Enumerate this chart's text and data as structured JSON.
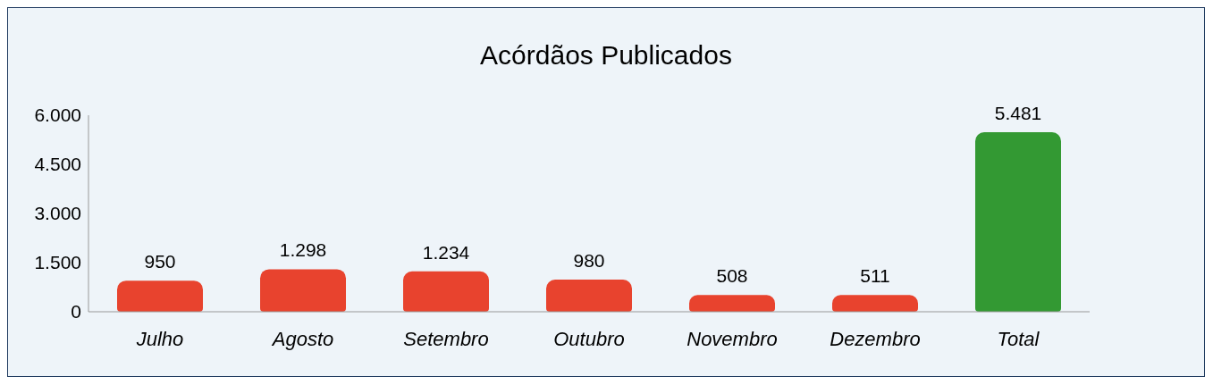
{
  "chart_data": {
    "type": "bar",
    "title": "Acórdãos Publicados",
    "categories": [
      "Julho",
      "Agosto",
      "Setembro",
      "Outubro",
      "Novembro",
      "Dezembro",
      "Total"
    ],
    "values": [
      950,
      1298,
      1234,
      980,
      508,
      511,
      5481
    ],
    "colors": [
      "#e8432e",
      "#e8432e",
      "#e8432e",
      "#e8432e",
      "#e8432e",
      "#e8432e",
      "#339933"
    ],
    "value_labels": [
      "950",
      "1.298",
      "1.234",
      "980",
      "508",
      "511",
      "5.481"
    ],
    "ylim": [
      0,
      6000
    ],
    "yticks": [
      {
        "value": 0,
        "label": "0"
      },
      {
        "value": 1500,
        "label": "1.500"
      },
      {
        "value": 3000,
        "label": "3.000"
      },
      {
        "value": 4500,
        "label": "4.500"
      },
      {
        "value": 6000,
        "label": "6.000"
      }
    ],
    "grid": false,
    "legend": false
  }
}
